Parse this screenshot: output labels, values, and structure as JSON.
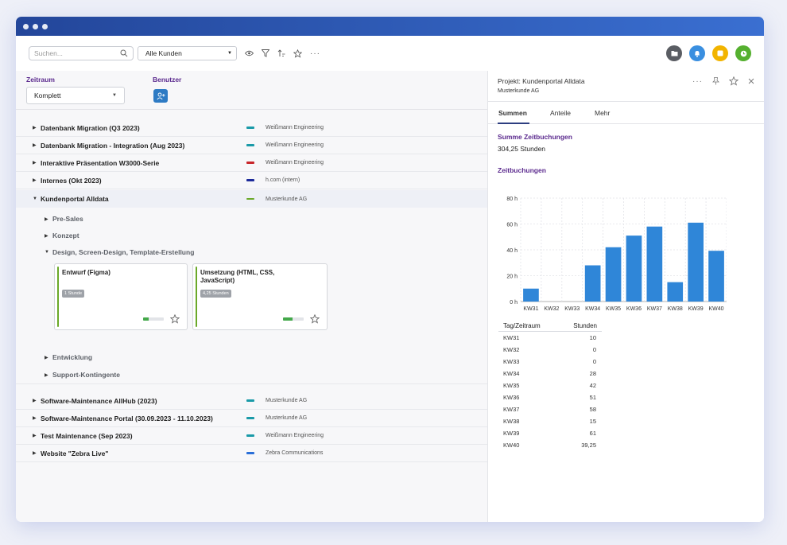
{
  "toolbar": {
    "search_placeholder": "Suchen...",
    "customer_filter": "Alle Kunden"
  },
  "filters": {
    "period_label": "Zeitraum",
    "period_value": "Komplett",
    "user_label": "Benutzer"
  },
  "projects": [
    {
      "name": "Datenbank Migration (Q3 2023)",
      "client": "Weißmann Engineering",
      "color": "#1a9aa8"
    },
    {
      "name": "Datenbank Migration - Integration (Aug 2023)",
      "client": "Weißmann Engineering",
      "color": "#1a9aa8"
    },
    {
      "name": "Interaktive Präsentation W3000-Serie",
      "client": "Weißmann Engineering",
      "color": "#c8262b"
    },
    {
      "name": "Internes (Okt 2023)",
      "client": "h.com (intern)",
      "color": "#1c2a9a"
    },
    {
      "name": "Kundenportal Alldata",
      "client": "Musterkunde AG",
      "color": "#6aa828"
    },
    {
      "name": "Software-Maintenance AllHub (2023)",
      "client": "Musterkunde AG",
      "color": "#1a9aa8"
    },
    {
      "name": "Software-Maintenance Portal (30.09.2023 - 11.10.2023)",
      "client": "Musterkunde AG",
      "color": "#1a9aa8"
    },
    {
      "name": "Test Maintenance (Sep 2023)",
      "client": "Weißmann Engineering",
      "color": "#1a9aa8"
    },
    {
      "name": "Website \"Zebra Live\"",
      "client": "Zebra Communications",
      "color": "#2a6fd8"
    }
  ],
  "subitems": [
    "Pre-Sales",
    "Konzept",
    "Design, Screen-Design, Template-Erstellung",
    "Entwicklung",
    "Support-Kontingente"
  ],
  "cards": [
    {
      "title": "Entwurf (Figma)",
      "hours": "1 Stunde",
      "progress": 0.25
    },
    {
      "title": "Umsetzung (HTML, CSS, JavaScript)",
      "hours": "4,25 Stunden",
      "progress": 0.45
    }
  ],
  "panel": {
    "title": "Projekt: Kundenportal Alldata",
    "client": "Musterkunde AG",
    "tabs": [
      "Summen",
      "Anteile",
      "Mehr"
    ],
    "sum_heading": "Summe Zeitbuchungen",
    "sum_value": "304,25 Stunden",
    "chart_heading": "Zeitbuchungen",
    "table_headers": [
      "Tag/Zeitraum",
      "Stunden"
    ],
    "table_rows": [
      [
        "KW31",
        "10"
      ],
      [
        "KW32",
        "0"
      ],
      [
        "KW33",
        "0"
      ],
      [
        "KW34",
        "28"
      ],
      [
        "KW35",
        "42"
      ],
      [
        "KW36",
        "51"
      ],
      [
        "KW37",
        "58"
      ],
      [
        "KW38",
        "15"
      ],
      [
        "KW39",
        "61"
      ],
      [
        "KW40",
        "39,25"
      ]
    ]
  },
  "chart_data": {
    "type": "bar",
    "categories": [
      "KW31",
      "KW32",
      "KW33",
      "KW34",
      "KW35",
      "KW36",
      "KW37",
      "KW38",
      "KW39",
      "KW40"
    ],
    "values": [
      10,
      0,
      0,
      28,
      42,
      51,
      58,
      15,
      61,
      39.25
    ],
    "yticks": [
      "0 h",
      "20 h",
      "40 h",
      "60 h",
      "80 h"
    ],
    "ylim": [
      0,
      80
    ],
    "grid": true,
    "bar_color": "#2f86d8",
    "title": "",
    "xlabel": "",
    "ylabel": ""
  }
}
